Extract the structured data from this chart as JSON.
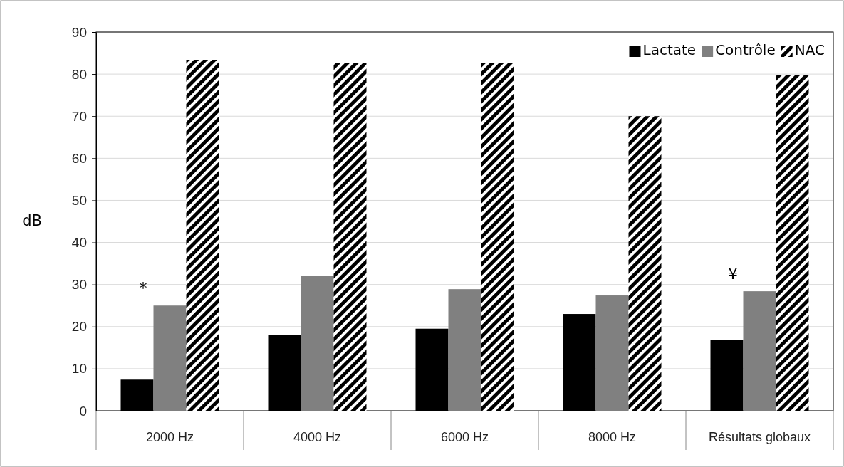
{
  "chart_data": {
    "type": "bar",
    "ylabel": "dB",
    "categories": [
      "2000 Hz",
      "4000 Hz",
      "6000 Hz",
      "8000 Hz",
      "Résultats globaux"
    ],
    "series": [
      {
        "name": "Lactate",
        "color": "#000000",
        "values": [
          7.4,
          18.1,
          19.5,
          23.0,
          16.9
        ]
      },
      {
        "name": "Contrôle",
        "color": "#808080",
        "values": [
          25.0,
          32.1,
          28.9,
          27.4,
          28.4
        ]
      },
      {
        "name": "NAC",
        "color": "#000000",
        "values": [
          83.4,
          82.6,
          82.6,
          70.0,
          79.7
        ]
      }
    ],
    "ylim": [
      0,
      90
    ],
    "yticks": [
      0,
      10,
      20,
      30,
      40,
      50,
      60,
      70,
      80,
      90
    ],
    "grid": "y",
    "legend": "top right",
    "annotations": [
      "*",
      "¥"
    ]
  }
}
